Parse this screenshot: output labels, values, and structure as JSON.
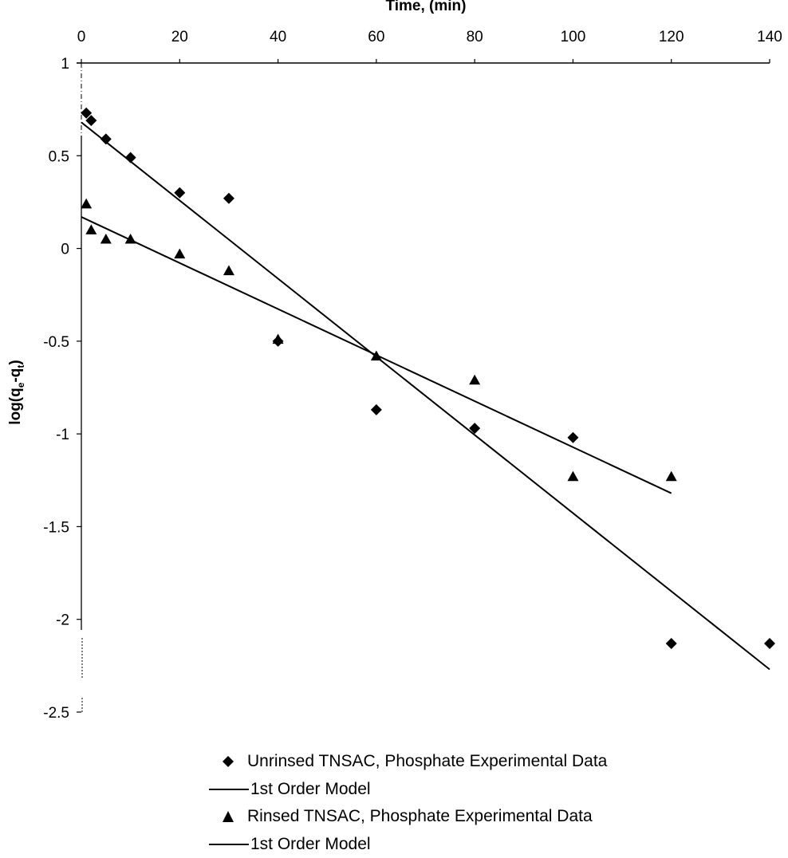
{
  "chart_data": {
    "type": "scatter",
    "title": "",
    "xlabel": "Time, (min)",
    "ylabel": "log(qₑ-qₜ)",
    "ylabel_parts": {
      "main": "log(q",
      "sub1": "e",
      "mid": "-q",
      "sub2": "t",
      "end": ")"
    },
    "xlim": [
      0,
      140
    ],
    "ylim": [
      -2.5,
      1
    ],
    "x_axis_position": "top",
    "x_ticks": [
      0,
      20,
      40,
      60,
      80,
      100,
      120,
      140
    ],
    "x_tick_labels": [
      "0",
      "20",
      "40",
      "60",
      "80",
      "100",
      "120",
      "140"
    ],
    "y_ticks": [
      1,
      0.5,
      0,
      -0.5,
      -1,
      -1.5,
      -2,
      -2.5
    ],
    "y_tick_labels": [
      "1",
      "0.5",
      "0",
      "-0.5",
      "-1",
      "-1.5",
      "-2",
      "-2.5"
    ],
    "grid": false,
    "legend_position": "bottom",
    "series": [
      {
        "name": "Unrinsed TNSAC, Phosphate Experimental Data",
        "kind": "points",
        "marker": "diamond",
        "color": "#000000",
        "x": [
          1,
          2,
          5,
          10,
          20,
          30,
          40,
          60,
          80,
          100,
          120,
          140
        ],
        "y": [
          0.73,
          0.69,
          0.59,
          0.49,
          0.3,
          0.27,
          -0.5,
          -0.87,
          -0.97,
          -1.02,
          -2.13,
          -2.13
        ]
      },
      {
        "name": "1st Order Model",
        "kind": "line",
        "color": "#000000",
        "x": [
          0,
          140
        ],
        "y": [
          0.68,
          -2.27
        ]
      },
      {
        "name": "Rinsed TNSAC, Phosphate Experimental Data",
        "kind": "points",
        "marker": "triangle",
        "color": "#000000",
        "x": [
          1,
          2,
          5,
          10,
          20,
          30,
          40,
          60,
          80,
          100,
          120
        ],
        "y": [
          0.24,
          0.1,
          0.05,
          0.05,
          -0.03,
          -0.12,
          -0.49,
          -0.58,
          -0.71,
          -1.23,
          -1.23
        ]
      },
      {
        "name": "1st Order Model",
        "kind": "line",
        "color": "#000000",
        "x": [
          0,
          120
        ],
        "y": [
          0.17,
          -1.32
        ]
      }
    ]
  }
}
